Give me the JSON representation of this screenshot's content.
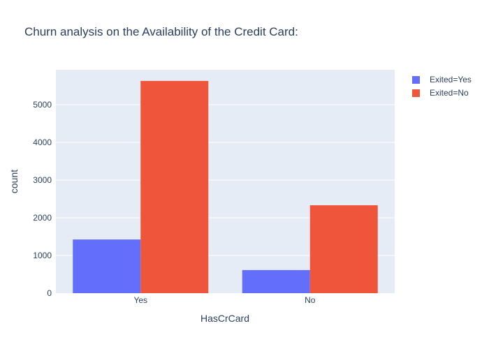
{
  "chart_data": {
    "type": "bar",
    "title": "Churn analysis on the Availability of the Credit Card:",
    "xlabel": "HasCrCard",
    "ylabel": "count",
    "categories": [
      "Yes",
      "No"
    ],
    "series": [
      {
        "name": "Exited=Yes",
        "color": "#636efa",
        "values": [
          1424,
          613
        ]
      },
      {
        "name": "Exited=No",
        "color": "#ef553b",
        "values": [
          5631,
          2332
        ]
      }
    ],
    "ylim": [
      0,
      5926
    ],
    "yticks": [
      0,
      1000,
      2000,
      3000,
      4000,
      5000
    ],
    "ytick_labels": [
      "0",
      "1000",
      "2000",
      "3000",
      "4000",
      "5000"
    ],
    "grid": true,
    "legend_position": "top-right",
    "plot_background": "#e5ecf6"
  }
}
